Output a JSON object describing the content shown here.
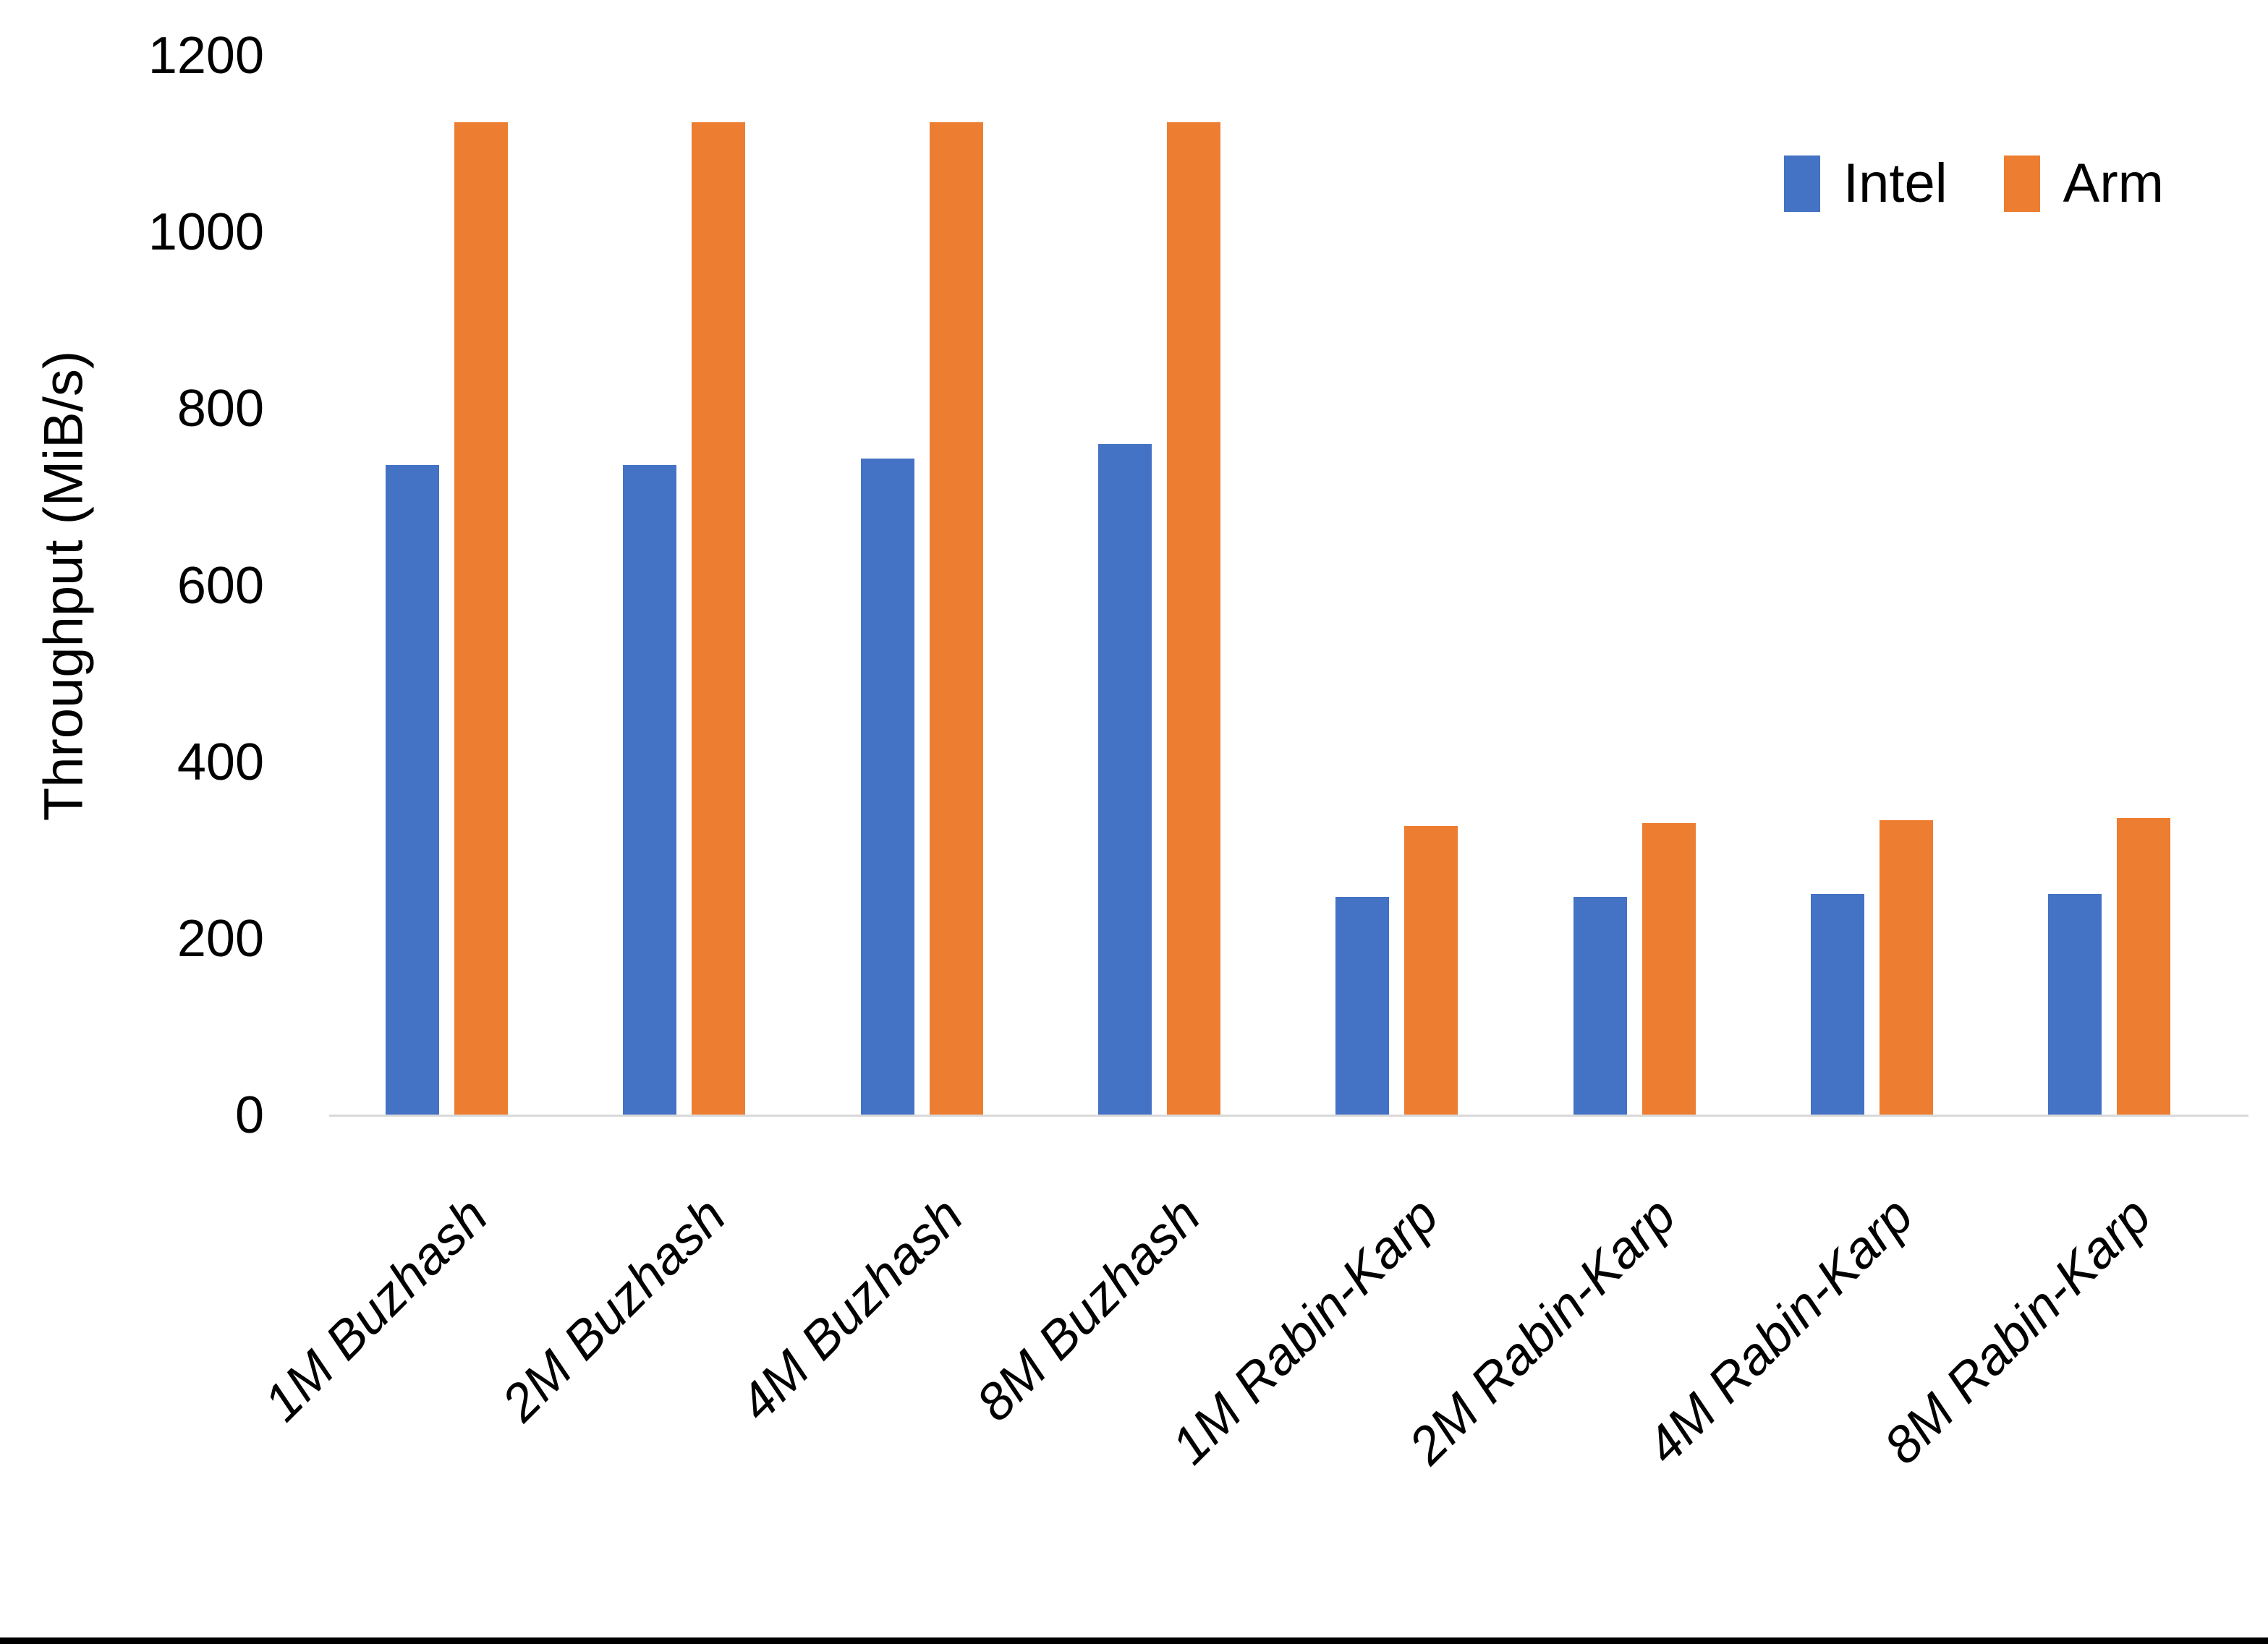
{
  "chart_data": {
    "type": "bar",
    "title": "",
    "ylabel": "Throughput (MiB/s)",
    "xlabel": "",
    "ylim": [
      0,
      1200
    ],
    "yticks": [
      0,
      200,
      400,
      600,
      800,
      1000,
      1200
    ],
    "categories": [
      "1M Buzhash",
      "2M Buzhash",
      "4M Buzhash",
      "8M Buzhash",
      "1M Rabin-Karp",
      "2M Rabin-Karp",
      "4M Rabin-Karp",
      "8M Rabin-Karp"
    ],
    "series": [
      {
        "name": "Intel",
        "color": "#4472C4",
        "values": [
          736,
          736,
          744,
          760,
          247,
          247,
          251,
          251
        ]
      },
      {
        "name": "Arm",
        "color": "#ED7D31",
        "values": [
          1125,
          1125,
          1125,
          1125,
          328,
          331,
          334,
          337
        ]
      }
    ],
    "legend_position": "top-right",
    "grid": false,
    "axis_line_color": "#D9D9D9"
  }
}
